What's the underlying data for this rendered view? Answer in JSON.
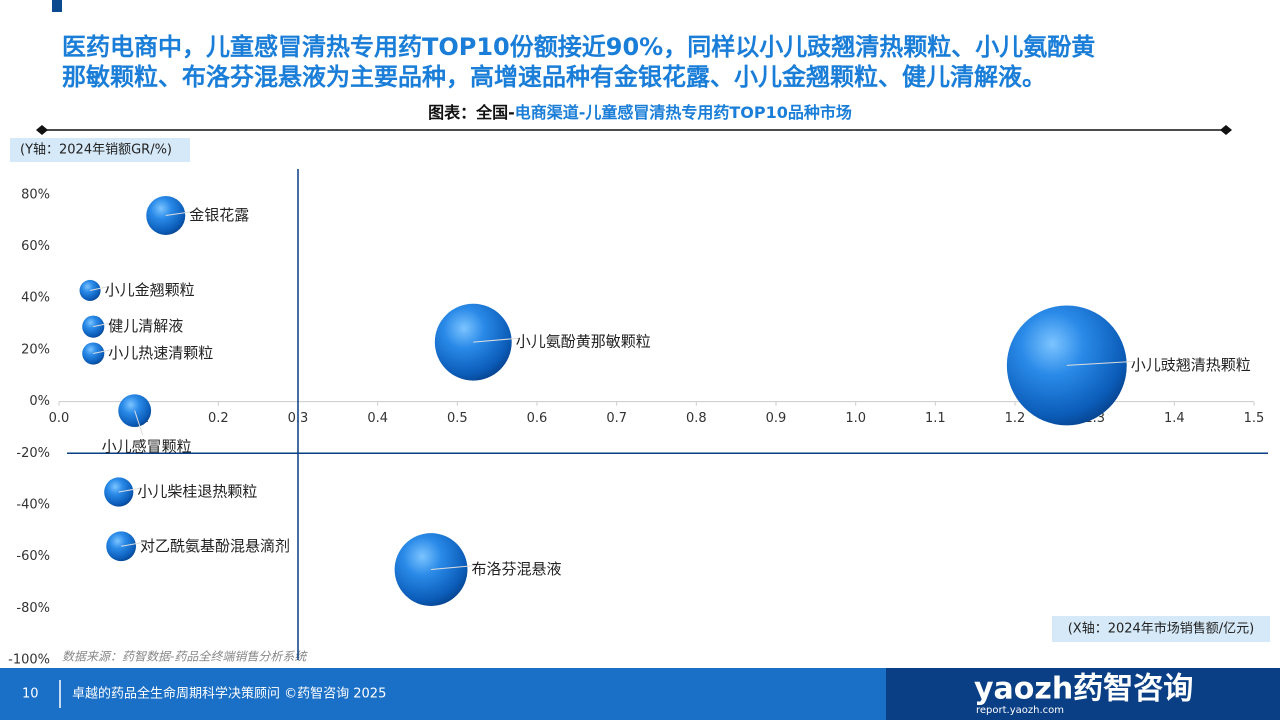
{
  "header": {
    "headline": [
      "医药电商中，儿童感冒清热专用药TOP10份额接近90%，同样以小儿豉翘清热颗粒、小儿氨酚黄",
      "那敏颗粒、布洛芬混悬液为主要品种，高增速品种有金银花露、小儿金翘颗粒、健儿清解液。"
    ]
  },
  "chart_data": {
    "type": "bubble",
    "title_parts": [
      "图表：全国-",
      "电商渠道-",
      "儿童感冒清热专用药TOP10品种市场"
    ],
    "y_label": "(Y轴：2024年销额GR/%)",
    "x_label": "(X轴：2024年市场销售额/亿元)",
    "source": "数据来源：药智数据-药品全终端销售分析系统",
    "labels": [
      "金银花露",
      "小儿金翘颗粒",
      "健儿清解液",
      "小儿热速清颗粒",
      "小儿氨酚黄那敏颗粒",
      "小儿豉翘清热颗粒",
      "小儿感冒颗粒",
      "小儿柴桂退热颗粒",
      "对乙酰氨基酚混悬滴剂",
      "布洛芬混悬液"
    ],
    "x": [
      0.134,
      0.039,
      0.043,
      0.043,
      0.52,
      1.265,
      0.095,
      0.075,
      0.078,
      0.467
    ],
    "values": [
      72,
      43,
      29,
      18.6,
      23,
      14,
      -3.5,
      -35,
      -56,
      -65
    ],
    "color": "#1a7ed8",
    "xlim": [
      0,
      1.5
    ],
    "ylim": [
      -100,
      90
    ],
    "xticks": [
      {
        "value": 0,
        "label": "0.0"
      },
      0.1,
      0.2,
      0.3,
      0.4,
      0.5,
      0.6,
      0.7,
      0.8,
      0.9,
      {
        "value": 1,
        "label": "1.0"
      },
      1.1,
      1.2,
      1.3,
      1.4,
      1.5
    ],
    "yticks": [
      {
        "value": -100,
        "label": "-100%"
      },
      {
        "value": -80,
        "label": "-80%"
      },
      {
        "value": -60,
        "label": "-60%"
      },
      {
        "value": -40,
        "label": "-40%"
      },
      {
        "value": -20,
        "label": "-20%"
      },
      {
        "value": 0,
        "label": "0%"
      },
      {
        "value": 20,
        "label": "20%"
      },
      {
        "value": 40,
        "label": "40%"
      },
      {
        "value": 60,
        "label": "60%"
      },
      {
        "value": 80,
        "label": "80%"
      }
    ],
    "reference_lines": {
      "x": 0.3,
      "y": -20
    }
  },
  "footer": {
    "page": "10",
    "tagline": "卓越的药品全生命周期科学决策顾问 ©药智咨询 2025",
    "logo": "yaozh药智咨询",
    "url": "report.yaozh.com"
  }
}
